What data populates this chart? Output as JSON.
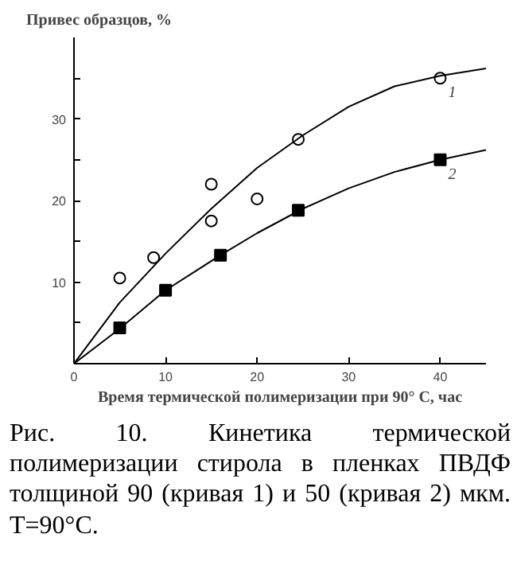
{
  "chart_data": {
    "type": "scatter",
    "ylabel": "Привес образцов, %",
    "xlabel": "Время термической полимеризации при 90° С, час",
    "xlim": [
      0,
      45
    ],
    "ylim": [
      0,
      40
    ],
    "xticks": [
      0,
      10,
      20,
      30,
      40
    ],
    "yticks": [
      {
        "value": 5,
        "label": null
      },
      10,
      {
        "value": 15,
        "label": null
      },
      20,
      {
        "value": 25,
        "label": null
      },
      30,
      {
        "value": 35,
        "label": null
      }
    ],
    "grid": false,
    "series": [
      {
        "name": "1",
        "color": "#000000",
        "marker": "circle",
        "x": [
          5,
          8.7,
          15,
          15,
          20,
          24.5,
          40
        ],
        "values": [
          10.5,
          13,
          22,
          17.5,
          20.2,
          27.5,
          35
        ]
      },
      {
        "name": "2",
        "color": "#000000",
        "marker": "square",
        "x": [
          5,
          10,
          16,
          24.5,
          40
        ],
        "values": [
          4.4,
          9,
          13.3,
          18.8,
          25
        ]
      },
      {
        "type": "line",
        "color": "#000000",
        "x": [
          0,
          5,
          10,
          15,
          20,
          25,
          30,
          35,
          40,
          45
        ],
        "values": [
          0,
          7.5,
          13.5,
          19,
          24,
          28,
          31.5,
          34,
          35.3,
          36.2
        ]
      },
      {
        "type": "line",
        "color": "#000000",
        "x": [
          0,
          5,
          10,
          16,
          20,
          25,
          30,
          35,
          40,
          45
        ],
        "values": [
          0,
          4.3,
          9,
          13.3,
          16,
          19,
          21.5,
          23.5,
          25,
          26.2
        ]
      }
    ],
    "annotations": [
      "Рис. 10. Кинетика термической полимеризации стирола в пленках ПВДФ толщиной 90 (кривая 1) и 50 (кривая 2) мкм. Т=90°С."
    ]
  }
}
